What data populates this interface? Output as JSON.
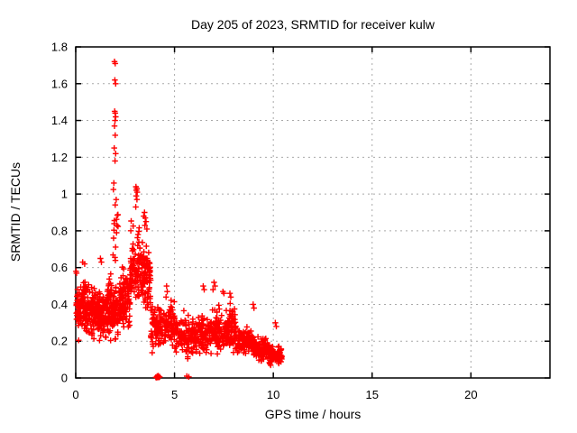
{
  "chart_data": {
    "type": "scatter",
    "title": "Day 205 of 2023, SRMTID for receiver kulw",
    "xlabel": "GPS time / hours",
    "ylabel": "SRMTID / TECUs",
    "xlim": [
      0,
      24
    ],
    "ylim": [
      0,
      1.8
    ],
    "xticks": [
      0,
      5,
      10,
      15,
      20
    ],
    "xtick_labels": [
      "0",
      "5",
      "10",
      "15",
      "20"
    ],
    "yticks": [
      0,
      0.2,
      0.4,
      0.6,
      0.8,
      1,
      1.2,
      1.4,
      1.6,
      1.8
    ],
    "ytick_labels": [
      "0",
      "0.2",
      "0.4",
      "0.6",
      "0.8",
      "1",
      "1.2",
      "1.4",
      "1.6",
      "1.8"
    ],
    "grid": true,
    "legend": false,
    "marker": {
      "shape": "plus",
      "size": 6.5,
      "color": "#ff0000"
    },
    "style": {
      "marker_color": "#ff0000",
      "grid_color": "#a9a9a9",
      "axis_color": "#000000",
      "text_color": "#000000",
      "background": "#ffffff"
    },
    "data_extent": {
      "x_min": 0.0,
      "x_max": 10.45,
      "y_min": 0.0,
      "y_max": 1.72
    },
    "notable_points": [
      [
        0.02,
        0.58
      ],
      [
        0.04,
        0.57
      ],
      [
        0.35,
        0.63
      ],
      [
        0.45,
        0.62
      ],
      [
        1.25,
        0.65
      ],
      [
        1.3,
        0.63
      ],
      [
        1.96,
        1.72
      ],
      [
        2.0,
        1.71
      ],
      [
        1.98,
        1.62
      ],
      [
        2.02,
        1.6
      ],
      [
        1.97,
        1.45
      ],
      [
        2.0,
        1.44
      ],
      [
        2.02,
        1.42
      ],
      [
        1.99,
        1.4
      ],
      [
        1.96,
        1.37
      ],
      [
        2.0,
        1.32
      ],
      [
        1.95,
        1.25
      ],
      [
        2.02,
        1.22
      ],
      [
        1.99,
        1.18
      ],
      [
        1.93,
        1.06
      ],
      [
        2.05,
        0.97
      ],
      [
        3.05,
        1.04
      ],
      [
        3.09,
        1.03
      ],
      [
        3.07,
        1.02
      ],
      [
        3.11,
        1.01
      ],
      [
        3.06,
        0.99
      ],
      [
        3.1,
        0.97
      ],
      [
        3.04,
        0.93
      ],
      [
        3.48,
        0.9
      ],
      [
        3.44,
        0.88
      ],
      [
        3.52,
        0.87
      ],
      [
        3.56,
        0.85
      ],
      [
        3.5,
        0.83
      ],
      [
        3.6,
        0.81
      ],
      [
        4.6,
        0.5
      ],
      [
        4.63,
        0.47
      ],
      [
        4.57,
        0.44
      ],
      [
        6.45,
        0.5
      ],
      [
        6.5,
        0.48
      ],
      [
        6.95,
        0.48
      ],
      [
        7.0,
        0.52
      ],
      [
        7.05,
        0.5
      ],
      [
        7.45,
        0.47
      ],
      [
        7.5,
        0.46
      ],
      [
        7.8,
        0.46
      ],
      [
        7.85,
        0.44
      ],
      [
        8.98,
        0.4
      ],
      [
        9.02,
        0.38
      ],
      [
        10.1,
        0.3
      ],
      [
        10.15,
        0.28
      ],
      [
        4.05,
        0.004
      ],
      [
        4.1,
        0.002
      ],
      [
        4.15,
        0.005
      ],
      [
        4.2,
        0.003
      ],
      [
        4.25,
        0.006
      ],
      [
        4.12,
        0.01
      ],
      [
        4.18,
        0.012
      ],
      [
        5.62,
        0.01
      ],
      [
        5.72,
        0.006
      ]
    ],
    "clusters_format": [
      "n_points",
      "x_start",
      "x_end",
      "y_mean",
      "y_sd",
      "y_min",
      "y_max"
    ],
    "clusters": [
      [
        130,
        0.03,
        0.7,
        0.37,
        0.11,
        0.14,
        0.64
      ],
      [
        160,
        0.7,
        1.6,
        0.35,
        0.1,
        0.12,
        0.65
      ],
      [
        115,
        1.6,
        2.2,
        0.38,
        0.13,
        0.12,
        0.8
      ],
      [
        16,
        1.88,
        2.18,
        0.82,
        0.16,
        0.58,
        1.1
      ],
      [
        110,
        2.2,
        2.75,
        0.42,
        0.13,
        0.15,
        0.8
      ],
      [
        100,
        2.75,
        3.35,
        0.6,
        0.17,
        0.25,
        0.97
      ],
      [
        85,
        3.35,
        3.8,
        0.55,
        0.15,
        0.2,
        0.92
      ],
      [
        90,
        3.8,
        4.5,
        0.28,
        0.09,
        0.08,
        0.5
      ],
      [
        70,
        4.5,
        5.0,
        0.3,
        0.1,
        0.1,
        0.52
      ],
      [
        70,
        5.0,
        5.6,
        0.25,
        0.08,
        0.08,
        0.43
      ],
      [
        80,
        5.6,
        6.2,
        0.22,
        0.08,
        0.06,
        0.42
      ],
      [
        90,
        6.2,
        6.9,
        0.24,
        0.08,
        0.08,
        0.46
      ],
      [
        90,
        6.9,
        7.6,
        0.26,
        0.09,
        0.1,
        0.5
      ],
      [
        80,
        7.6,
        8.1,
        0.27,
        0.09,
        0.1,
        0.47
      ],
      [
        110,
        8.1,
        9.0,
        0.2,
        0.06,
        0.07,
        0.38
      ],
      [
        120,
        9.0,
        9.8,
        0.16,
        0.05,
        0.06,
        0.33
      ],
      [
        90,
        9.8,
        10.45,
        0.12,
        0.04,
        0.05,
        0.28
      ]
    ],
    "seed": 7
  }
}
